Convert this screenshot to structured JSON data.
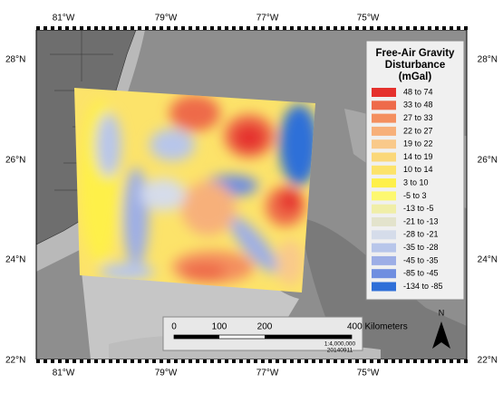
{
  "map": {
    "x_labels": [
      "81°W",
      "79°W",
      "77°W",
      "75°W"
    ],
    "y_labels": [
      "28°N",
      "26°N",
      "24°N",
      "22°N"
    ],
    "legend": {
      "title": [
        "Free-Air Gravity",
        "Disturbance",
        "(mGal)"
      ],
      "items": [
        {
          "label": "48 to 74",
          "color": "#e5312d"
        },
        {
          "label": "33 to 48",
          "color": "#ee6a4a"
        },
        {
          "label": "27 to 33",
          "color": "#f48f5f"
        },
        {
          "label": "22 to 27",
          "color": "#f7b07a"
        },
        {
          "label": "19 to 22",
          "color": "#f9c98a"
        },
        {
          "label": "14 to 19",
          "color": "#fbd87a"
        },
        {
          "label": "10 to 14",
          "color": "#fce36a"
        },
        {
          "label": "3 to 10",
          "color": "#fef04a"
        },
        {
          "label": "-5 to 3",
          "color": "#fdf870"
        },
        {
          "label": "-13 to -5",
          "color": "#f0eea8"
        },
        {
          "label": "-21 to -13",
          "color": "#e3e3cc"
        },
        {
          "label": "-28 to -21",
          "color": "#d5dcea"
        },
        {
          "label": "-35 to -28",
          "color": "#b8c6ea"
        },
        {
          "label": "-45 to -35",
          "color": "#9daee6"
        },
        {
          "label": "-85 to -45",
          "color": "#6f8ee0"
        },
        {
          "label": "-134 to -85",
          "color": "#2f6fd8"
        }
      ]
    },
    "scale_bar": {
      "labels": [
        "0",
        "100",
        "200",
        "400 Kilometers"
      ],
      "scale": "1:4,000,000",
      "date": "20140911"
    },
    "north_label": "N"
  }
}
